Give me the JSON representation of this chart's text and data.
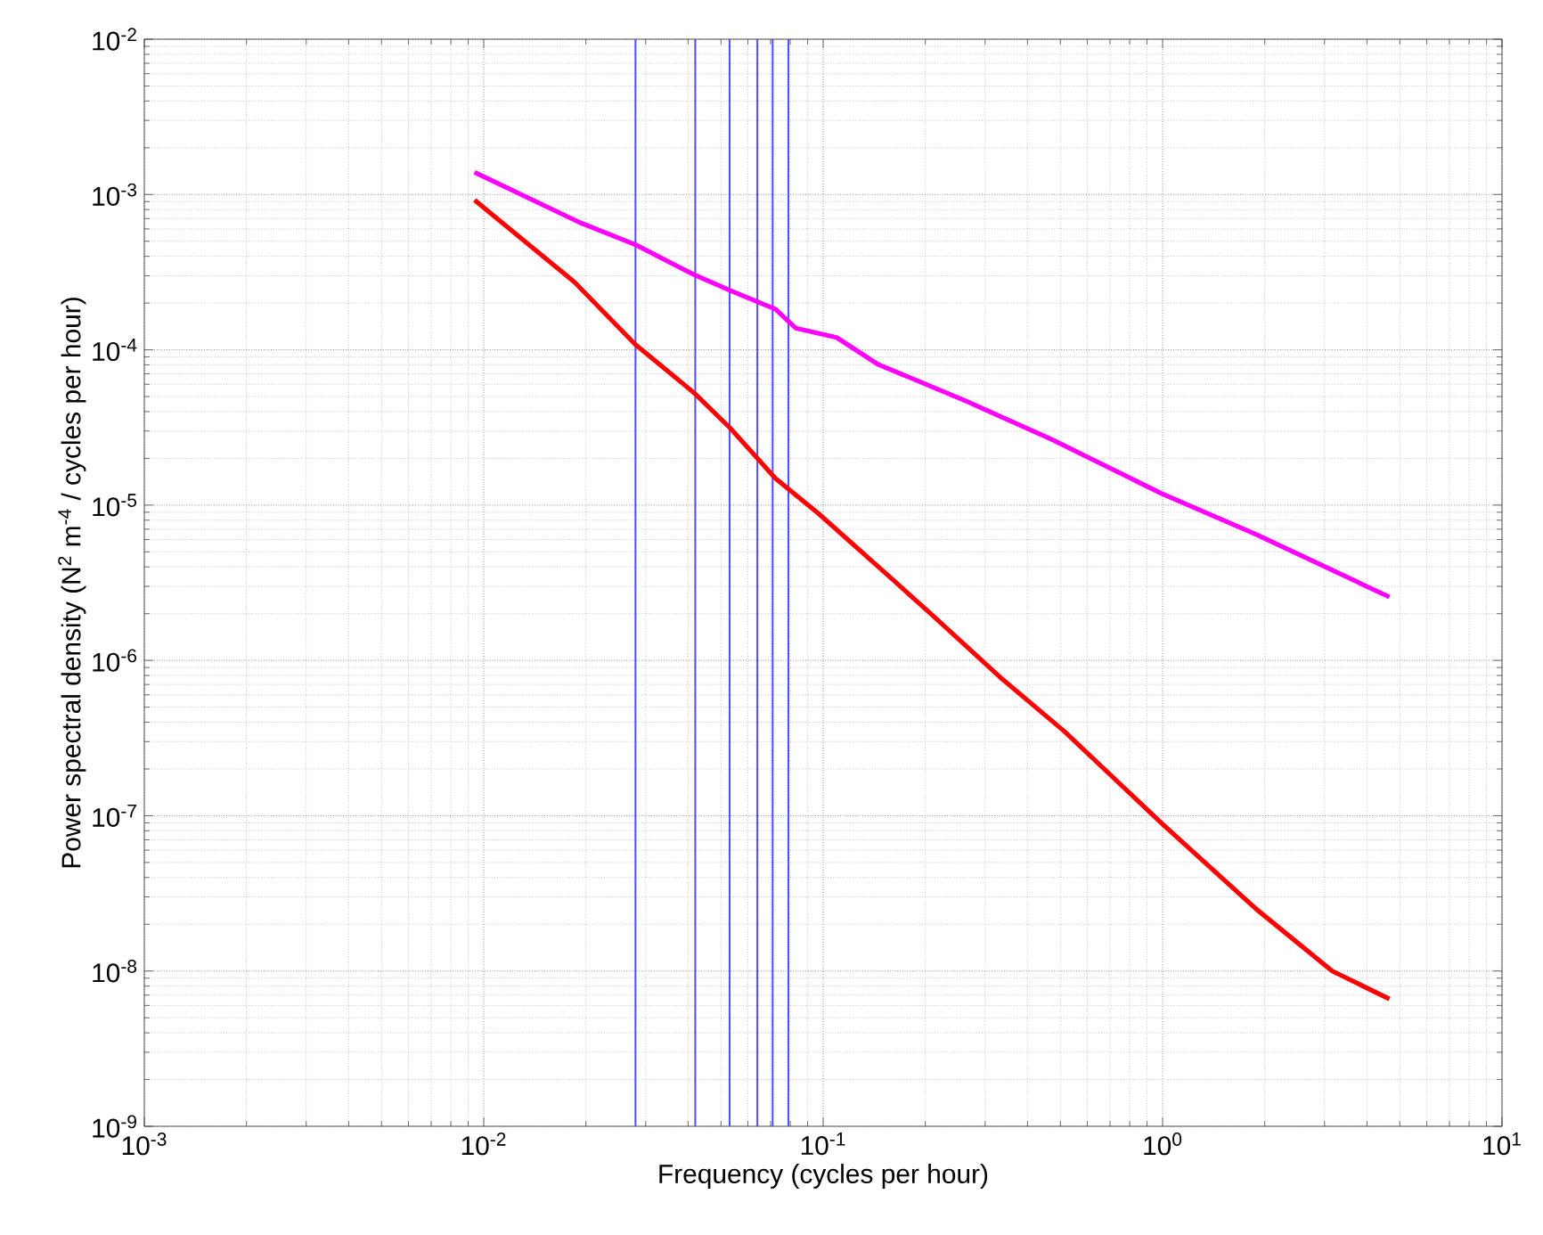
{
  "chart_data": {
    "type": "line",
    "xlabel": "Frequency (cycles per hour)",
    "ylabel": "Power spectral density (N$^{2}$ m$^{-4}$ / cycles per hour)",
    "log": "xy",
    "grid": true,
    "xlim": [
      0.001,
      10
    ],
    "ylim": [
      1e-09,
      0.01
    ],
    "xticks": [
      {
        "value": 0.001,
        "label": "10$^{-3}$"
      },
      {
        "value": 0.01,
        "label": "10$^{-2}$"
      },
      {
        "value": 0.1,
        "label": "10$^{-1}$"
      },
      {
        "value": 1,
        "label": "10$^{0}$"
      },
      {
        "value": 10,
        "label": "10$^{1}$"
      }
    ],
    "yticks": [
      {
        "value": 1e-09,
        "label": "10$^{-9}$"
      },
      {
        "value": 1e-08,
        "label": "10$^{-8}$"
      },
      {
        "value": 1e-07,
        "label": "10$^{-7}$"
      },
      {
        "value": 1e-06,
        "label": "10$^{-6}$"
      },
      {
        "value": 1e-05,
        "label": "10$^{-5}$"
      },
      {
        "value": 0.0001,
        "label": "10$^{-4}$"
      },
      {
        "value": 0.001,
        "label": "10$^{-3}$"
      },
      {
        "value": 0.01,
        "label": "10$^{-2}$"
      }
    ],
    "series": [
      {
        "color": "#ff00ff",
        "x": [
          0.0094,
          0.0192,
          0.028,
          0.0416,
          0.0537,
          0.0723,
          0.083,
          0.1096,
          0.1445,
          0.262,
          0.473,
          0.99,
          1.89,
          4.66
        ],
        "values": [
          0.00139,
          0.00066,
          0.000475,
          0.000305,
          0.000239,
          0.000183,
          0.000138,
          0.00012,
          8.1e-05,
          4.7e-05,
          2.64e-05,
          1.19e-05,
          6.46e-06,
          2.56e-06
        ]
      },
      {
        "color": "#ff0000",
        "x": [
          0.0094,
          0.0185,
          0.028,
          0.0416,
          0.0531,
          0.0723,
          0.097,
          0.16,
          0.214,
          0.332,
          0.513,
          0.99,
          1.89,
          3.16,
          4.66
        ],
        "values": [
          0.00092,
          0.000273,
          0.000108,
          5.3e-05,
          3.15e-05,
          1.49e-05,
          8.8e-06,
          3.33e-06,
          1.88e-06,
          7.8e-07,
          3.5e-07,
          9e-08,
          2.5e-08,
          1e-08,
          6.6e-09
        ]
      }
    ],
    "ref_lines": [
      {
        "axis": "x",
        "value": 0.028,
        "color": "#4d4dff"
      },
      {
        "axis": "x",
        "value": 0.042,
        "color": "#4d4dff"
      },
      {
        "axis": "x",
        "value": 0.053,
        "color": "#4d4dff"
      },
      {
        "axis": "x",
        "value": 0.064,
        "color": "#4d4dff"
      },
      {
        "axis": "x",
        "value": 0.071,
        "color": "#4d4dff"
      },
      {
        "axis": "x",
        "value": 0.079,
        "color": "#4d4dff"
      }
    ]
  }
}
